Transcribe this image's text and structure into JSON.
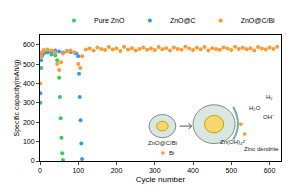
{
  "chart_data": {
    "type": "scatter",
    "x_label": "Cycle number",
    "y_label": "Specific capacity(mAh/g)",
    "xlim": [
      0,
      630
    ],
    "xticks": [
      0,
      100,
      200,
      300,
      400,
      500,
      600
    ],
    "ylim": [
      0,
      650
    ],
    "yticks": [
      0,
      100,
      200,
      300,
      400,
      500,
      600
    ],
    "grid": false,
    "legend": "top",
    "series": [
      {
        "name": "Pure ZnO",
        "color": "#33cc55",
        "marker": "circle",
        "x": [
          1,
          3,
          5,
          10,
          20,
          30,
          40,
          45,
          50,
          52,
          54,
          56,
          58,
          60
        ],
        "values": [
          300,
          480,
          540,
          555,
          560,
          550,
          545,
          520,
          430,
          330,
          220,
          120,
          40,
          5
        ]
      },
      {
        "name": "ZnO@C",
        "color": "#3399ff",
        "marker": "circle",
        "x": [
          1,
          3,
          5,
          10,
          20,
          30,
          40,
          50,
          60,
          70,
          80,
          90,
          95,
          100,
          102,
          104,
          106,
          108,
          110
        ],
        "values": [
          350,
          520,
          550,
          560,
          565,
          560,
          570,
          565,
          560,
          568,
          562,
          558,
          555,
          540,
          450,
          330,
          210,
          90,
          10
        ]
      },
      {
        "name": "ZnO@C/Bi",
        "color": "#ff9933",
        "marker": "circle",
        "x": [
          1,
          3,
          5,
          10,
          20,
          30,
          40,
          45,
          50,
          55,
          60,
          70,
          80,
          90,
          100,
          105,
          110,
          120,
          130,
          140,
          150,
          160,
          170,
          180,
          190,
          200,
          210,
          220,
          230,
          240,
          250,
          260,
          270,
          280,
          290,
          300,
          310,
          320,
          330,
          340,
          350,
          360,
          370,
          380,
          390,
          400,
          410,
          420,
          430,
          440,
          450,
          460,
          470,
          480,
          490,
          500,
          510,
          520,
          530,
          540,
          550,
          560,
          570,
          580,
          590,
          600,
          610,
          620
        ],
        "values": [
          400,
          540,
          560,
          572,
          575,
          570,
          560,
          500,
          470,
          510,
          555,
          565,
          570,
          560,
          500,
          480,
          540,
          575,
          580,
          570,
          585,
          578,
          572,
          588,
          575,
          580,
          568,
          590,
          575,
          582,
          570,
          578,
          586,
          574,
          580,
          572,
          588,
          576,
          582,
          570,
          585,
          578,
          574,
          590,
          580,
          572,
          584,
          576,
          588,
          570,
          582,
          578,
          574,
          586,
          580,
          572,
          590,
          578,
          584,
          576,
          582,
          570,
          588,
          580,
          575,
          585,
          578,
          590
        ]
      }
    ],
    "annotations": [
      "ZnO@C/Bi",
      "Bi",
      "H₂",
      "H₂O",
      "OH⁻",
      "Zn(OH)₄²⁻",
      "Zinc dendrite"
    ]
  }
}
